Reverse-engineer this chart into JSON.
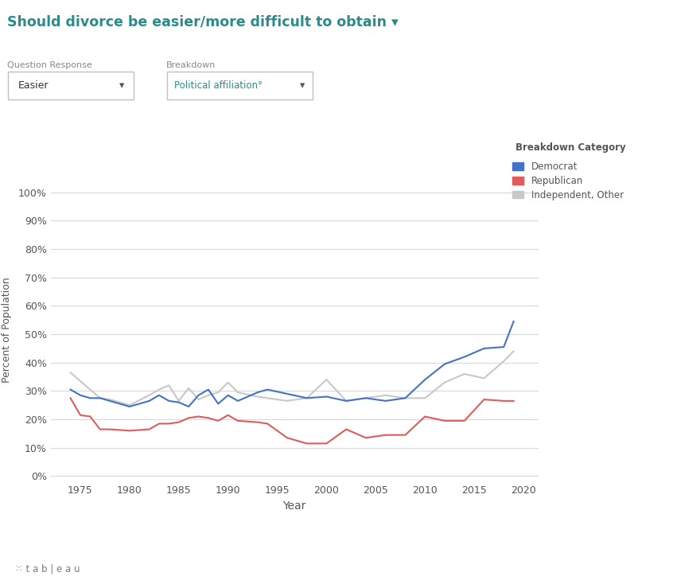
{
  "title": "Should divorce be easier/more difficult to obtain ▾",
  "title_color": "#2d8a8a",
  "question_label": "Question Response",
  "response_value": "Easier",
  "breakdown_label": "Breakdown",
  "breakdown_value": "Political affiliation°",
  "xlabel": "Year",
  "ylabel": "Percent of Population",
  "yticks": [
    0,
    10,
    20,
    30,
    40,
    50,
    60,
    70,
    80,
    90,
    100
  ],
  "ylim": [
    -2,
    105
  ],
  "background_color": "#ffffff",
  "plot_bg_color": "#ffffff",
  "grid_color": "#d8d8d8",
  "legend_title": "Breakdown Category",
  "legend_entries": [
    "Democrat",
    "Republican",
    "Independent, Other"
  ],
  "democrat_color": "#4472c4",
  "republican_color": "#e05c5c",
  "independent_color": "#c8c8c8",
  "democrat_data": {
    "years": [
      1974,
      1975,
      1976,
      1977,
      1978,
      1980,
      1982,
      1983,
      1984,
      1985,
      1986,
      1987,
      1988,
      1989,
      1990,
      1991,
      1993,
      1994,
      1996,
      1998,
      2000,
      2002,
      2004,
      2006,
      2008,
      2010,
      2012,
      2014,
      2016,
      2018,
      2019
    ],
    "values": [
      30.5,
      28.5,
      27.5,
      27.5,
      26.5,
      24.5,
      26.5,
      28.5,
      26.5,
      26.0,
      24.5,
      28.5,
      30.5,
      25.5,
      28.5,
      26.5,
      29.5,
      30.5,
      29.0,
      27.5,
      28.0,
      26.5,
      27.5,
      26.5,
      27.5,
      34.0,
      39.5,
      42.0,
      45.0,
      45.5,
      54.5
    ]
  },
  "republican_data": {
    "years": [
      1974,
      1975,
      1976,
      1977,
      1978,
      1980,
      1982,
      1983,
      1984,
      1985,
      1986,
      1987,
      1988,
      1989,
      1990,
      1991,
      1993,
      1994,
      1996,
      1998,
      2000,
      2002,
      2004,
      2006,
      2008,
      2010,
      2012,
      2014,
      2016,
      2018,
      2019
    ],
    "values": [
      27.5,
      21.5,
      21.0,
      16.5,
      16.5,
      16.0,
      16.5,
      18.5,
      18.5,
      19.0,
      20.5,
      21.0,
      20.5,
      19.5,
      21.5,
      19.5,
      19.0,
      18.5,
      13.5,
      11.5,
      11.5,
      16.5,
      13.5,
      14.5,
      14.5,
      21.0,
      19.5,
      19.5,
      27.0,
      26.5,
      26.5
    ]
  },
  "independent_data": {
    "years": [
      1974,
      1975,
      1976,
      1977,
      1978,
      1980,
      1982,
      1983,
      1984,
      1985,
      1986,
      1987,
      1988,
      1989,
      1990,
      1991,
      1993,
      1994,
      1996,
      1998,
      2000,
      2002,
      2004,
      2006,
      2008,
      2010,
      2012,
      2014,
      2016,
      2018,
      2019
    ],
    "values": [
      36.5,
      33.5,
      30.5,
      27.5,
      27.0,
      25.0,
      28.5,
      30.5,
      32.0,
      26.5,
      31.0,
      27.0,
      28.5,
      29.5,
      33.0,
      29.5,
      28.0,
      27.5,
      26.5,
      27.5,
      34.0,
      26.5,
      27.5,
      28.5,
      27.5,
      27.5,
      33.0,
      36.0,
      34.5,
      40.5,
      44.0
    ]
  },
  "xticks": [
    1975,
    1980,
    1985,
    1990,
    1995,
    2000,
    2005,
    2010,
    2015,
    2020
  ],
  "footer_bg": "#e8e8e8",
  "button_color": "#8c8c8c",
  "button_text_color": "#ffffff",
  "dropdown_border_color": "#c0c0c0",
  "text_color": "#555555",
  "label_color": "#888888"
}
